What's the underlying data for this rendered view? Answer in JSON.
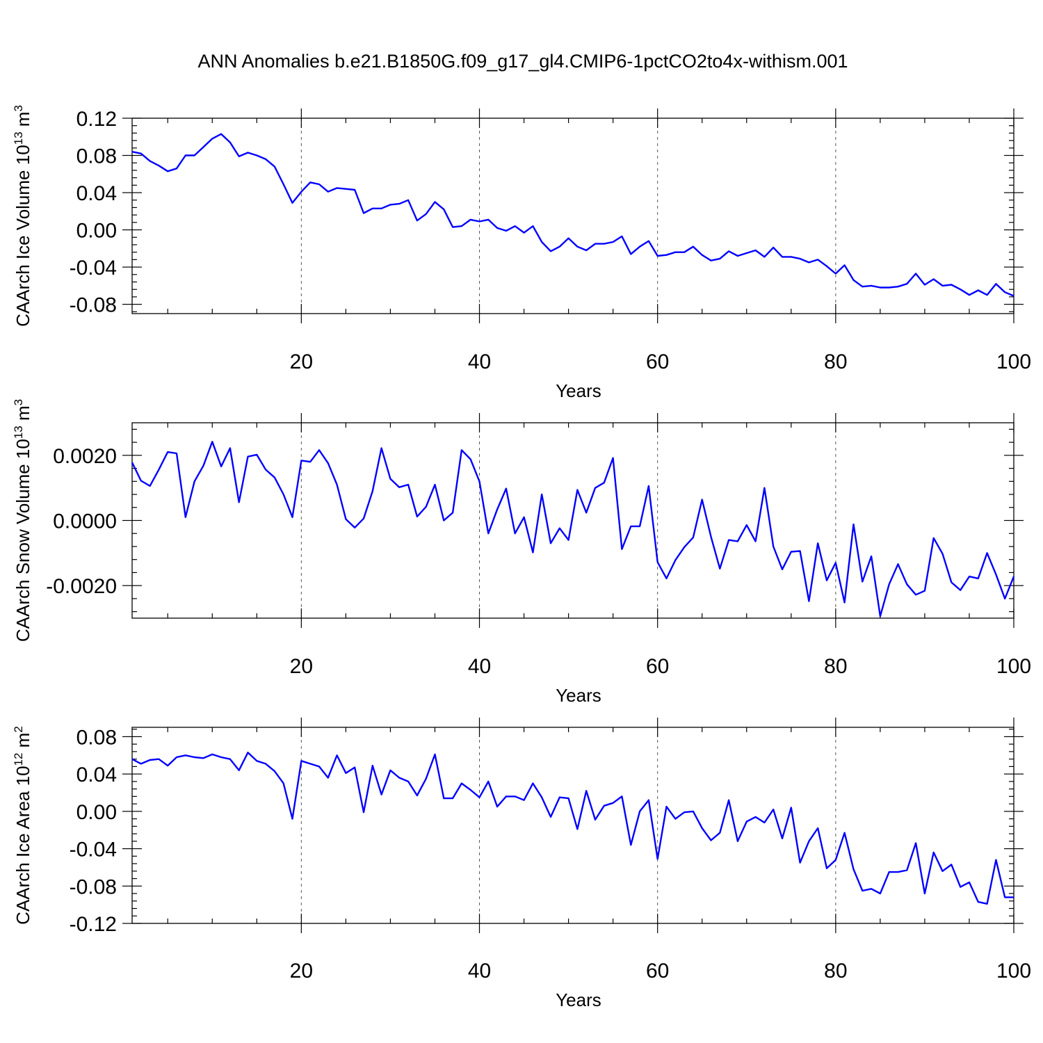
{
  "figure_title": "ANN Anomalies b.e21.B1850G.f09_g17_gl4.CMIP6-1pctCO2to4x-withism.001",
  "colors": {
    "series": "#0000ff",
    "axes": "#000000",
    "grid": "#555555"
  },
  "chart_data": [
    {
      "type": "line",
      "ylabel": "CAArch Ice Volume 10",
      "ylabel_units": "13",
      "ylabel_tail": " m",
      "ylabel_exp2": "3",
      "xlabel": "Years",
      "xlim": [
        1,
        100
      ],
      "ylim": [
        -0.09,
        0.12
      ],
      "xticks": [
        20,
        40,
        60,
        80,
        100
      ],
      "xtick_labels": [
        "20",
        "40",
        "60",
        "80",
        "100"
      ],
      "yticks": [
        -0.08,
        -0.04,
        0.0,
        0.04,
        0.08,
        0.12
      ],
      "ytick_labels": [
        "-0.08",
        "-0.04",
        "0.00",
        "0.04",
        "0.08",
        "0.12"
      ],
      "grid": "vertical dashed at x ticks",
      "series": [
        {
          "name": "ice_volume",
          "x": [
            1,
            2,
            3,
            4,
            5,
            6,
            7,
            8,
            9,
            10,
            11,
            12,
            13,
            14,
            15,
            16,
            17,
            18,
            19,
            20,
            21,
            22,
            23,
            24,
            25,
            26,
            27,
            28,
            29,
            30,
            31,
            32,
            33,
            34,
            35,
            36,
            37,
            38,
            39,
            40,
            41,
            42,
            43,
            44,
            45,
            46,
            47,
            48,
            49,
            50,
            51,
            52,
            53,
            54,
            55,
            56,
            57,
            58,
            59,
            60,
            61,
            62,
            63,
            64,
            65,
            66,
            67,
            68,
            69,
            70,
            71,
            72,
            73,
            74,
            75,
            76,
            77,
            78,
            79,
            80,
            81,
            82,
            83,
            84,
            85,
            86,
            87,
            88,
            89,
            90,
            91,
            92,
            93,
            94,
            95,
            96,
            97,
            98,
            99,
            100
          ],
          "values": [
            0.084,
            0.082,
            0.074,
            0.069,
            0.063,
            0.066,
            0.08,
            0.08,
            0.089,
            0.098,
            0.103,
            0.094,
            0.079,
            0.083,
            0.08,
            0.076,
            0.068,
            0.049,
            0.029,
            0.041,
            0.051,
            0.049,
            0.041,
            0.045,
            0.044,
            0.043,
            0.018,
            0.023,
            0.023,
            0.027,
            0.028,
            0.032,
            0.01,
            0.017,
            0.03,
            0.022,
            0.003,
            0.004,
            0.011,
            0.009,
            0.011,
            0.002,
            -0.001,
            0.004,
            -0.003,
            0.004,
            -0.013,
            -0.023,
            -0.018,
            -0.009,
            -0.018,
            -0.022,
            -0.015,
            -0.015,
            -0.013,
            -0.007,
            -0.026,
            -0.018,
            -0.012,
            -0.028,
            -0.027,
            -0.024,
            -0.024,
            -0.018,
            -0.027,
            -0.033,
            -0.031,
            -0.023,
            -0.028,
            -0.025,
            -0.022,
            -0.029,
            -0.019,
            -0.029,
            -0.029,
            -0.031,
            -0.035,
            -0.032,
            -0.039,
            -0.047,
            -0.038,
            -0.054,
            -0.061,
            -0.06,
            -0.062,
            -0.062,
            -0.061,
            -0.058,
            -0.047,
            -0.059,
            -0.053,
            -0.06,
            -0.059,
            -0.064,
            -0.07,
            -0.065,
            -0.07,
            -0.058,
            -0.067,
            -0.071
          ]
        }
      ]
    },
    {
      "type": "line",
      "ylabel": "CAArch Snow Volume 10",
      "ylabel_units": "13",
      "ylabel_tail": " m",
      "ylabel_exp2": "3",
      "xlabel": "Years",
      "xlim": [
        1,
        100
      ],
      "ylim": [
        -0.003,
        0.003
      ],
      "xticks": [
        20,
        40,
        60,
        80,
        100
      ],
      "xtick_labels": [
        "20",
        "40",
        "60",
        "80",
        "100"
      ],
      "yticks": [
        -0.002,
        0.0,
        0.002
      ],
      "ytick_labels": [
        "-0.0020",
        "0.0000",
        "0.0020"
      ],
      "grid": "vertical dashed at x ticks",
      "series": [
        {
          "name": "snow_volume",
          "x": [
            1,
            2,
            3,
            4,
            5,
            6,
            7,
            8,
            9,
            10,
            11,
            12,
            13,
            14,
            15,
            16,
            17,
            18,
            19,
            20,
            21,
            22,
            23,
            24,
            25,
            26,
            27,
            28,
            29,
            30,
            31,
            32,
            33,
            34,
            35,
            36,
            37,
            38,
            39,
            40,
            41,
            42,
            43,
            44,
            45,
            46,
            47,
            48,
            49,
            50,
            51,
            52,
            53,
            54,
            55,
            56,
            57,
            58,
            59,
            60,
            61,
            62,
            63,
            64,
            65,
            66,
            67,
            68,
            69,
            70,
            71,
            72,
            73,
            74,
            75,
            76,
            77,
            78,
            79,
            80,
            81,
            82,
            83,
            84,
            85,
            86,
            87,
            88,
            89,
            90,
            91,
            92,
            93,
            94,
            95,
            96,
            97,
            98,
            99,
            100
          ],
          "values": [
            0.00178,
            0.00122,
            0.00106,
            0.00156,
            0.0021,
            0.00206,
            0.0001,
            0.0012,
            0.00168,
            0.00242,
            0.00166,
            0.00222,
            0.00056,
            0.00196,
            0.00202,
            0.00156,
            0.00132,
            0.0008,
            0.0001,
            0.00184,
            0.0018,
            0.00216,
            0.00176,
            0.0011,
            4e-05,
            -0.00022,
            6e-05,
            0.0009,
            0.00222,
            0.00128,
            0.00102,
            0.0011,
            0.00012,
            0.00042,
            0.0011,
            0.0,
            0.00024,
            0.00216,
            0.00188,
            0.0012,
            -0.0004,
            0.00034,
            0.00098,
            -0.0004,
            0.0001,
            -0.00098,
            0.0008,
            -0.0007,
            -0.00024,
            -0.0006,
            0.00094,
            0.00024,
            0.001,
            0.00116,
            0.00192,
            -0.00088,
            -0.00018,
            -0.00018,
            0.00106,
            -0.00128,
            -0.00178,
            -0.00122,
            -0.00082,
            -0.00052,
            0.00064,
            -0.0005,
            -0.00148,
            -0.0006,
            -0.00064,
            -0.00014,
            -0.00064,
            0.001,
            -0.0008,
            -0.0015,
            -0.00096,
            -0.00094,
            -0.00248,
            -0.0007,
            -0.00184,
            -0.0013,
            -0.00252,
            -0.00012,
            -0.00188,
            -0.0011,
            -0.00294,
            -0.00196,
            -0.00134,
            -0.00196,
            -0.00228,
            -0.00216,
            -0.00054,
            -0.00102,
            -0.0019,
            -0.00214,
            -0.00172,
            -0.00178,
            -0.001,
            -0.00166,
            -0.0024,
            -0.00172
          ]
        }
      ]
    },
    {
      "type": "line",
      "ylabel": "CAArch Ice Area 10",
      "ylabel_units": "12",
      "ylabel_tail": " m",
      "ylabel_exp2": "2",
      "xlabel": "Years",
      "xlim": [
        1,
        100
      ],
      "ylim": [
        -0.12,
        0.09
      ],
      "xticks": [
        20,
        40,
        60,
        80,
        100
      ],
      "xtick_labels": [
        "20",
        "40",
        "60",
        "80",
        "100"
      ],
      "yticks": [
        -0.12,
        -0.08,
        -0.04,
        0.0,
        0.04,
        0.08
      ],
      "ytick_labels": [
        "-0.12",
        "-0.08",
        "-0.04",
        "0.00",
        "0.04",
        "0.08"
      ],
      "grid": "vertical dashed at x ticks",
      "series": [
        {
          "name": "ice_area",
          "x": [
            1,
            2,
            3,
            4,
            5,
            6,
            7,
            8,
            9,
            10,
            11,
            12,
            13,
            14,
            15,
            16,
            17,
            18,
            19,
            20,
            21,
            22,
            23,
            24,
            25,
            26,
            27,
            28,
            29,
            30,
            31,
            32,
            33,
            34,
            35,
            36,
            37,
            38,
            39,
            40,
            41,
            42,
            43,
            44,
            45,
            46,
            47,
            48,
            49,
            50,
            51,
            52,
            53,
            54,
            55,
            56,
            57,
            58,
            59,
            60,
            61,
            62,
            63,
            64,
            65,
            66,
            67,
            68,
            69,
            70,
            71,
            72,
            73,
            74,
            75,
            76,
            77,
            78,
            79,
            80,
            81,
            82,
            83,
            84,
            85,
            86,
            87,
            88,
            89,
            90,
            91,
            92,
            93,
            94,
            95,
            96,
            97,
            98,
            99,
            100
          ],
          "values": [
            0.056,
            0.051,
            0.055,
            0.056,
            0.049,
            0.058,
            0.06,
            0.058,
            0.057,
            0.061,
            0.058,
            0.056,
            0.044,
            0.063,
            0.054,
            0.051,
            0.043,
            0.03,
            -0.008,
            0.054,
            0.051,
            0.048,
            0.036,
            0.06,
            0.041,
            0.047,
            -0.001,
            0.049,
            0.018,
            0.044,
            0.036,
            0.032,
            0.017,
            0.035,
            0.061,
            0.014,
            0.014,
            0.03,
            0.023,
            0.015,
            0.032,
            0.005,
            0.016,
            0.016,
            0.012,
            0.03,
            0.015,
            -0.006,
            0.015,
            0.014,
            -0.019,
            0.022,
            -0.009,
            0.006,
            0.009,
            0.016,
            -0.036,
            0.0,
            0.012,
            -0.051,
            0.005,
            -0.008,
            -0.001,
            0.0,
            -0.018,
            -0.031,
            -0.023,
            0.012,
            -0.032,
            -0.011,
            -0.006,
            -0.012,
            0.002,
            -0.029,
            0.004,
            -0.055,
            -0.032,
            -0.018,
            -0.061,
            -0.052,
            -0.023,
            -0.062,
            -0.085,
            -0.083,
            -0.088,
            -0.065,
            -0.065,
            -0.063,
            -0.034,
            -0.088,
            -0.044,
            -0.064,
            -0.057,
            -0.081,
            -0.076,
            -0.097,
            -0.099,
            -0.052,
            -0.092,
            -0.092
          ]
        }
      ]
    }
  ]
}
